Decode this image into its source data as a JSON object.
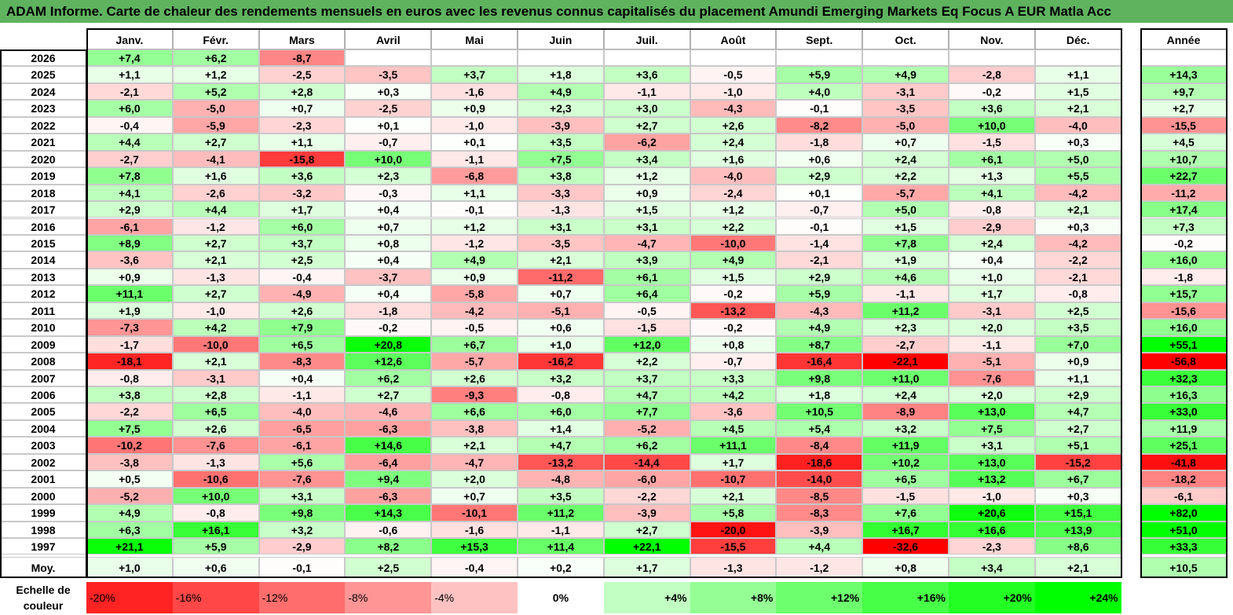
{
  "title": "ADAM Informe. Carte de chaleur des rendements mensuels en euros avec les revenus connus capitalisés du placement Amundi Emerging Markets Eq Focus A EUR Matla Acc",
  "chart_data": {
    "type": "heatmap",
    "title": "ADAM Informe. Carte de chaleur des rendements mensuels en euros avec les revenus connus capitalisés du placement Amundi Emerging Markets Eq Focus A EUR Matla Acc",
    "columns": [
      "Janv.",
      "Févr.",
      "Mars",
      "Avril",
      "Mai",
      "Juin",
      "Juil.",
      "Août",
      "Sept.",
      "Oct.",
      "Nov.",
      "Déc."
    ],
    "annual_header": "Année",
    "rows": [
      {
        "year": "2026",
        "values": [
          7.4,
          6.2,
          -8.7,
          null,
          null,
          null,
          null,
          null,
          null,
          null,
          null,
          null
        ],
        "annual": null
      },
      {
        "year": "2025",
        "values": [
          1.1,
          1.2,
          -2.5,
          -3.5,
          3.7,
          1.8,
          3.6,
          -0.5,
          5.9,
          4.9,
          -2.8,
          1.1
        ],
        "annual": 14.3
      },
      {
        "year": "2024",
        "values": [
          -2.1,
          5.2,
          2.8,
          0.3,
          -1.6,
          4.9,
          -1.1,
          -1.0,
          4.0,
          -3.1,
          -0.2,
          1.5
        ],
        "annual": 9.7
      },
      {
        "year": "2023",
        "values": [
          6.0,
          -5.0,
          0.7,
          -2.5,
          0.9,
          2.3,
          3.0,
          -4.3,
          -0.1,
          -3.5,
          3.6,
          2.1
        ],
        "annual": 2.7
      },
      {
        "year": "2022",
        "values": [
          -0.4,
          -5.9,
          -2.3,
          0.1,
          -1.0,
          -3.9,
          2.7,
          2.6,
          -8.2,
          -5.0,
          10.0,
          -4.0
        ],
        "annual": -15.5
      },
      {
        "year": "2021",
        "values": [
          4.4,
          2.7,
          1.1,
          -0.7,
          0.1,
          3.5,
          -6.2,
          2.4,
          -1.8,
          0.7,
          -1.5,
          0.3
        ],
        "annual": 4.5
      },
      {
        "year": "2020",
        "values": [
          -2.7,
          -4.1,
          -15.8,
          10.0,
          -1.1,
          7.5,
          3.4,
          1.6,
          0.6,
          2.4,
          6.1,
          5.0
        ],
        "annual": 10.7
      },
      {
        "year": "2019",
        "values": [
          7.8,
          1.6,
          3.6,
          2.3,
          -6.8,
          3.8,
          1.2,
          -4.0,
          2.9,
          2.2,
          1.3,
          5.5
        ],
        "annual": 22.7
      },
      {
        "year": "2018",
        "values": [
          4.1,
          -2.6,
          -3.2,
          -0.3,
          1.1,
          -3.3,
          0.9,
          -2.4,
          0.1,
          -5.7,
          4.1,
          -4.2
        ],
        "annual": -11.2
      },
      {
        "year": "2017",
        "values": [
          2.9,
          4.4,
          1.7,
          0.4,
          -0.1,
          -1.3,
          1.5,
          1.2,
          -0.7,
          5.0,
          -0.8,
          2.1
        ],
        "annual": 17.4
      },
      {
        "year": "2016",
        "values": [
          -6.1,
          -1.2,
          6.0,
          0.7,
          1.2,
          3.1,
          3.1,
          2.2,
          -0.1,
          1.5,
          -2.9,
          0.3
        ],
        "annual": 7.3
      },
      {
        "year": "2015",
        "values": [
          8.9,
          2.7,
          3.7,
          0.8,
          -1.2,
          -3.5,
          -4.7,
          -10.0,
          -1.4,
          7.8,
          2.4,
          -4.2
        ],
        "annual": -0.2
      },
      {
        "year": "2014",
        "values": [
          -3.6,
          2.1,
          2.5,
          0.4,
          4.9,
          2.1,
          3.9,
          4.9,
          -2.1,
          1.9,
          0.4,
          -2.2
        ],
        "annual": 16.0
      },
      {
        "year": "2013",
        "values": [
          0.9,
          -1.3,
          -0.4,
          -3.7,
          0.9,
          -11.2,
          6.1,
          1.5,
          2.9,
          4.6,
          1.0,
          -2.1
        ],
        "annual": -1.8
      },
      {
        "year": "2012",
        "values": [
          11.1,
          2.7,
          -4.9,
          0.4,
          -5.8,
          0.7,
          6.4,
          -0.2,
          5.9,
          -1.1,
          1.7,
          -0.8
        ],
        "annual": 15.7
      },
      {
        "year": "2011",
        "values": [
          1.9,
          -1.0,
          2.6,
          -1.8,
          -4.2,
          -5.1,
          -0.5,
          -13.2,
          -4.3,
          11.2,
          -3.1,
          2.5
        ],
        "annual": -15.6
      },
      {
        "year": "2010",
        "values": [
          -7.3,
          4.2,
          7.9,
          -0.2,
          -0.5,
          0.6,
          -1.5,
          -0.2,
          4.9,
          2.3,
          2.0,
          3.5
        ],
        "annual": 16.0
      },
      {
        "year": "2009",
        "values": [
          -1.7,
          -10.0,
          6.5,
          20.8,
          6.7,
          1.0,
          12.0,
          0.8,
          8.7,
          -2.7,
          -1.1,
          7.0
        ],
        "annual": 55.1
      },
      {
        "year": "2008",
        "values": [
          -18.1,
          2.1,
          -8.3,
          12.6,
          -5.7,
          -16.2,
          2.2,
          -0.7,
          -16.4,
          -22.1,
          -5.1,
          0.9
        ],
        "annual": -56.8
      },
      {
        "year": "2007",
        "values": [
          -0.8,
          -3.1,
          0.4,
          6.2,
          2.6,
          3.2,
          3.7,
          3.3,
          9.8,
          11.0,
          -7.6,
          1.1
        ],
        "annual": 32.3
      },
      {
        "year": "2006",
        "values": [
          3.8,
          2.8,
          -1.1,
          2.7,
          -9.3,
          -0.8,
          4.7,
          4.2,
          1.8,
          2.4,
          2.0,
          2.9
        ],
        "annual": 16.3
      },
      {
        "year": "2005",
        "values": [
          -2.2,
          6.5,
          -4.0,
          -4.6,
          6.6,
          6.0,
          7.7,
          -3.6,
          10.5,
          -8.9,
          13.0,
          4.7
        ],
        "annual": 33.0
      },
      {
        "year": "2004",
        "values": [
          7.5,
          2.6,
          -6.5,
          -6.3,
          -3.8,
          1.4,
          -5.2,
          4.5,
          5.4,
          3.2,
          7.5,
          2.7
        ],
        "annual": 11.9
      },
      {
        "year": "2003",
        "values": [
          -10.2,
          -7.6,
          -6.1,
          14.6,
          2.1,
          4.7,
          6.2,
          11.1,
          -8.4,
          11.9,
          3.1,
          5.1
        ],
        "annual": 25.1
      },
      {
        "year": "2002",
        "values": [
          -3.8,
          -1.3,
          5.6,
          -6.4,
          -4.7,
          -13.2,
          -14.4,
          1.7,
          -18.6,
          10.2,
          13.0,
          -15.2
        ],
        "annual": -41.8
      },
      {
        "year": "2001",
        "values": [
          0.5,
          -10.6,
          -7.6,
          9.4,
          2.0,
          -4.8,
          -6.0,
          -10.7,
          -14.0,
          6.5,
          13.2,
          6.7
        ],
        "annual": -18.2
      },
      {
        "year": "2000",
        "values": [
          -5.2,
          10.0,
          3.1,
          -6.3,
          0.7,
          3.5,
          -2.2,
          2.1,
          -8.5,
          -1.5,
          -1.0,
          0.3
        ],
        "annual": -6.1
      },
      {
        "year": "1999",
        "values": [
          4.9,
          -0.8,
          9.8,
          14.3,
          -10.1,
          11.2,
          -3.9,
          5.8,
          -8.3,
          7.6,
          20.6,
          15.1
        ],
        "annual": 82.0
      },
      {
        "year": "1998",
        "values": [
          6.3,
          16.1,
          3.2,
          -0.6,
          -1.6,
          -1.1,
          2.7,
          -20.0,
          -3.9,
          16.7,
          16.6,
          13.9
        ],
        "annual": 51.0
      },
      {
        "year": "1997",
        "values": [
          21.1,
          5.9,
          -2.9,
          8.2,
          15.3,
          11.4,
          22.1,
          -15.5,
          4.4,
          -32.6,
          -2.3,
          8.6
        ],
        "annual": 33.3
      }
    ],
    "average": {
      "label": "Moy.",
      "values": [
        1.0,
        0.6,
        -0.1,
        2.5,
        -0.4,
        0.2,
        1.7,
        -1.3,
        -1.2,
        0.8,
        3.4,
        2.1
      ],
      "annual": 10.5
    },
    "scale": {
      "label": "Echelle de couleur",
      "steps": [
        "-20%",
        "-16%",
        "-12%",
        "-8%",
        "-4%",
        "0%",
        "+4%",
        "+8%",
        "+12%",
        "+16%",
        "+20%",
        "+24%"
      ],
      "step_values": [
        -20,
        -16,
        -12,
        -8,
        -4,
        0,
        4,
        8,
        12,
        16,
        20,
        24
      ]
    },
    "colors": {
      "title_bg": "#5fb35f",
      "negative_max": "#ff0000",
      "positive_max": "#00ff00",
      "neutral": "#ffffff"
    }
  }
}
